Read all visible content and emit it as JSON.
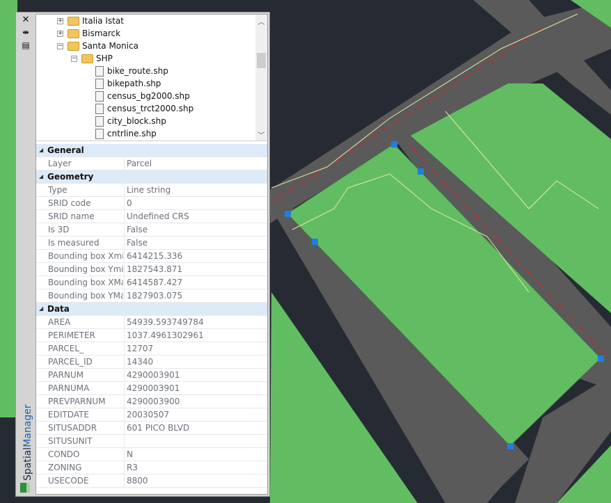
{
  "panel": {
    "title_a": "Spatial",
    "title_b": "Manager"
  },
  "icons": {
    "close": "close-icon",
    "autohide": "autohide-icon",
    "properties": "properties-icon",
    "logo": "spatialmanager-logo"
  },
  "tree": [
    {
      "label": "Italia Istat",
      "type": "folder-link",
      "expanded": false,
      "level": 1
    },
    {
      "label": "Bismarck",
      "type": "folder-link",
      "expanded": false,
      "level": 1
    },
    {
      "label": "Santa Monica",
      "type": "folder-link",
      "expanded": true,
      "level": 1
    },
    {
      "label": "SHP",
      "type": "folder",
      "expanded": true,
      "level": 2
    },
    {
      "label": "bike_route.shp",
      "type": "line-file",
      "level": 3
    },
    {
      "label": "bikepath.shp",
      "type": "polygon-file",
      "level": 3
    },
    {
      "label": "census_bg2000.shp",
      "type": "polygon-file",
      "level": 3
    },
    {
      "label": "census_trct2000.shp",
      "type": "polygon-file",
      "level": 3
    },
    {
      "label": "city_block.shp",
      "type": "polygon-file",
      "level": 3
    },
    {
      "label": "cntrline.shp",
      "type": "line-file",
      "level": 3
    }
  ],
  "properties": [
    {
      "header": "General"
    },
    {
      "k": "Layer",
      "v": "Parcel"
    },
    {
      "header": "Geometry"
    },
    {
      "k": "Type",
      "v": "Line string"
    },
    {
      "k": "SRID code",
      "v": "0"
    },
    {
      "k": "SRID name",
      "v": "Undefined CRS"
    },
    {
      "k": "Is 3D",
      "v": "False"
    },
    {
      "k": "Is measured",
      "v": "False"
    },
    {
      "k": "Bounding box Xmin",
      "v": "6414215.336"
    },
    {
      "k": "Bounding box Ymin",
      "v": "1827543.871"
    },
    {
      "k": "Bounding box XMax",
      "v": "6414587.427"
    },
    {
      "k": "Bounding box YMax",
      "v": "1827903.075"
    },
    {
      "header": "Data"
    },
    {
      "k": "AREA",
      "v": "54939.593749784"
    },
    {
      "k": "PERIMETER",
      "v": "1037.4961302961"
    },
    {
      "k": "PARCEL_",
      "v": "12707"
    },
    {
      "k": "PARCEL_ID",
      "v": "14340"
    },
    {
      "k": "PARNUM",
      "v": "4290003901"
    },
    {
      "k": "PARNUMA",
      "v": "4290003901"
    },
    {
      "k": "PREVPARNUM",
      "v": "4290003900"
    },
    {
      "k": "EDITDATE",
      "v": "20030507"
    },
    {
      "k": "SITUSADDR",
      "v": "601 PICO BLVD"
    },
    {
      "k": "SITUSUNIT",
      "v": ""
    },
    {
      "k": "CONDO",
      "v": "N"
    },
    {
      "k": "ZONING",
      "v": "R3"
    },
    {
      "k": "USECODE",
      "v": "8800"
    }
  ],
  "colors": {
    "background": "#262b33",
    "road": "#5a5a5a",
    "parcel": "#62bd62",
    "selection_grip": "#1e7fe0",
    "centerline": "#e02020",
    "contour": "#e8e8a0"
  }
}
